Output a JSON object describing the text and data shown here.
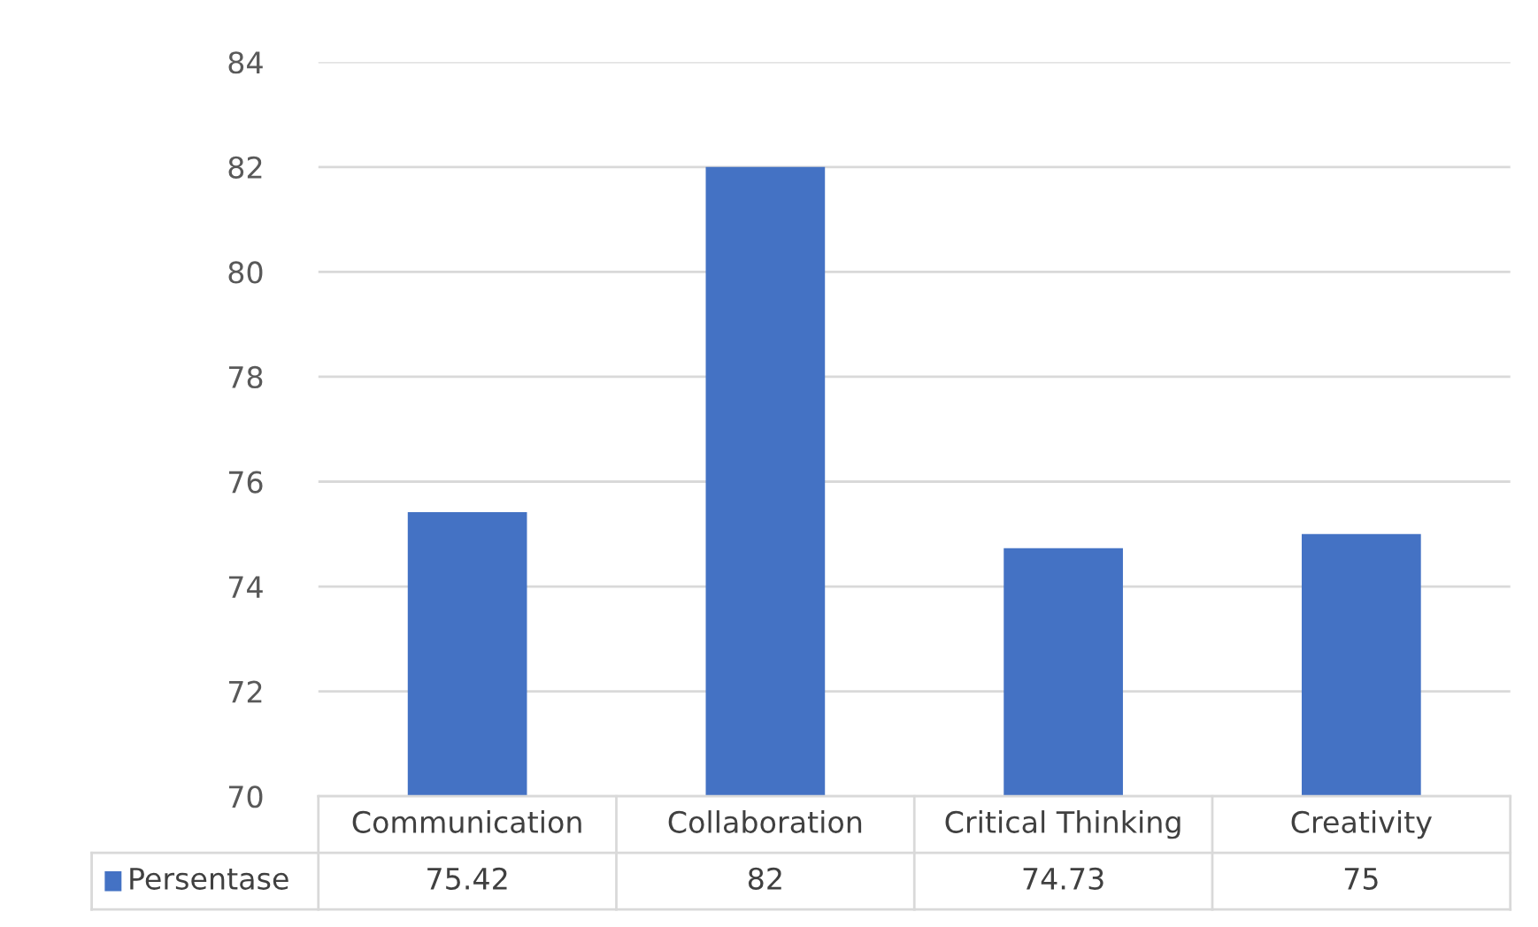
{
  "chart_data": {
    "type": "bar",
    "categories": [
      "Communication",
      "Collaboration",
      "Critical Thinking",
      "Creativity"
    ],
    "series": [
      {
        "name": "Persentase",
        "color": "#4472c4",
        "values": [
          75.42,
          82,
          74.73,
          75
        ]
      }
    ],
    "ylim": [
      70,
      84
    ],
    "yticks": [
      70,
      72,
      74,
      76,
      78,
      80,
      82,
      84
    ],
    "grid": "y",
    "data_labels": true,
    "legend": "bottom"
  }
}
